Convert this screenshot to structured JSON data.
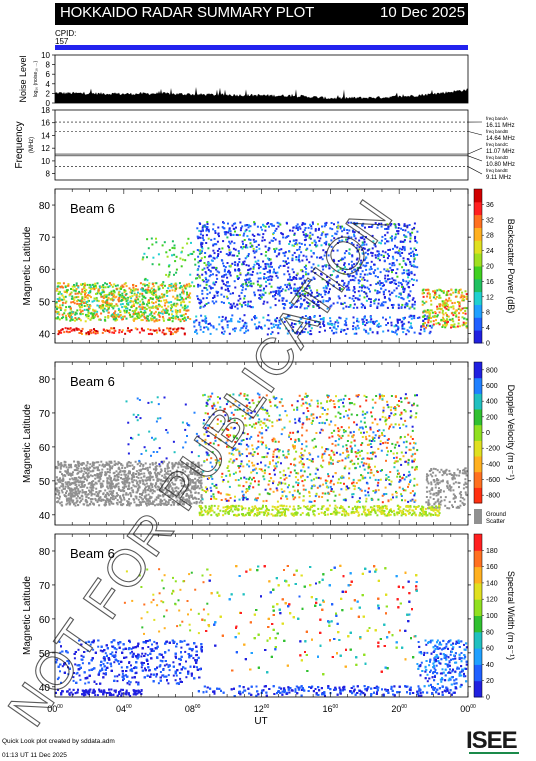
{
  "header": {
    "title": "HOKKAIDO RADAR SUMMARY PLOT",
    "date": "10 Dec 2025",
    "cpid_label": "CPID:",
    "cpid_value": "157"
  },
  "noise_panel": {
    "ylabel": "Noise Level",
    "yunits": "log₁₀ (noise₁₀ ...)",
    "yticks": [
      "0",
      "2",
      "4",
      "6",
      "8",
      "10"
    ]
  },
  "freq_panel": {
    "ylabel": "Frequency",
    "yunits": "(MHz)",
    "yticks": [
      "8",
      "10",
      "12",
      "14",
      "16",
      "18"
    ],
    "bands": [
      {
        "label": "freq bandA",
        "value": "16.11 MHz"
      },
      {
        "label": "freq bandB",
        "value": "14.64 MHz"
      },
      {
        "label": "freq bandC",
        "value": "11.07 MHz"
      },
      {
        "label": "freq bandD",
        "value": "10.80 MHz"
      },
      {
        "label": "freq bandE",
        "value": "9.11 MHz"
      }
    ]
  },
  "panels": [
    {
      "beam": "Beam  6",
      "ylabel": "Magnetic Latitude",
      "yticks": [
        "40",
        "50",
        "60",
        "70",
        "80"
      ],
      "cbar_label": "Backscatter Power (dB)",
      "cbar_ticks": [
        "0",
        "4",
        "8",
        "12",
        "16",
        "20",
        "24",
        "28",
        "32",
        "36"
      ],
      "kind": "power"
    },
    {
      "beam": "Beam  6",
      "ylabel": "Magnetic Latitude",
      "yticks": [
        "40",
        "50",
        "60",
        "70",
        "80"
      ],
      "cbar_label": "Doppler Velocity (m s⁻¹)",
      "cbar_ticks": [
        "-800",
        "-600",
        "-400",
        "-200",
        "0",
        "200",
        "400",
        "600",
        "800"
      ],
      "ground_label": "Ground",
      "ground_label2": "Scatter",
      "kind": "velocity"
    },
    {
      "beam": "Beam  6",
      "ylabel": "Magnetic Latitude",
      "yticks": [
        "40",
        "50",
        "60",
        "70",
        "80"
      ],
      "cbar_label": "Spectral Width (m s⁻¹)",
      "cbar_ticks": [
        "0",
        "20",
        "40",
        "60",
        "80",
        "100",
        "120",
        "140",
        "160",
        "180"
      ],
      "kind": "width"
    }
  ],
  "xaxis": {
    "ticks": [
      "00",
      "04",
      "08",
      "12",
      "16",
      "20",
      "00"
    ],
    "tick_sup": "00",
    "label": "UT"
  },
  "footer": {
    "line1": "Quick Look plot created by sddata.adm",
    "line2": "01:13 UT 11 Dec 2025",
    "logo": "ISEE"
  },
  "watermark": "NOT FOR PUBLICATION",
  "colors": {
    "header_bg": "#000000",
    "header_text": "#ffffff",
    "cpid_bar": "#2222ee",
    "ground": "#909090"
  },
  "chart_data": [
    {
      "type": "area",
      "title": "Noise Level",
      "x_range": [
        0,
        24
      ],
      "ylim": [
        0,
        10
      ],
      "x": [
        0,
        2,
        4,
        6,
        8,
        10,
        12,
        14,
        16,
        18,
        20,
        22,
        24
      ],
      "values": [
        1.8,
        1.7,
        1.6,
        1.7,
        1.5,
        1.4,
        1.3,
        1.2,
        0.7,
        0.8,
        1.0,
        1.6,
        2.5
      ]
    },
    {
      "type": "line",
      "title": "Frequency",
      "x_range": [
        0,
        24
      ],
      "ylim": [
        8,
        18
      ],
      "series": [
        {
          "name": "freq bandA",
          "values": [
            16.11
          ]
        },
        {
          "name": "freq bandB",
          "values": [
            14.64
          ]
        },
        {
          "name": "freq bandC",
          "values": [
            11.07
          ]
        },
        {
          "name": "freq bandD",
          "values": [
            10.8
          ]
        },
        {
          "name": "freq bandE",
          "values": [
            9.11
          ]
        }
      ]
    },
    {
      "type": "heatmap",
      "title": "Backscatter Power (dB)",
      "x_range": [
        0,
        24
      ],
      "ylim": [
        37,
        85
      ],
      "crange": [
        0,
        36
      ]
    },
    {
      "type": "heatmap",
      "title": "Doppler Velocity (m s⁻¹)",
      "x_range": [
        0,
        24
      ],
      "ylim": [
        37,
        85
      ],
      "crange": [
        -800,
        800
      ]
    },
    {
      "type": "heatmap",
      "title": "Spectral Width (m s⁻¹)",
      "x_range": [
        0,
        24
      ],
      "ylim": [
        37,
        85
      ],
      "crange": [
        0,
        180
      ]
    }
  ]
}
